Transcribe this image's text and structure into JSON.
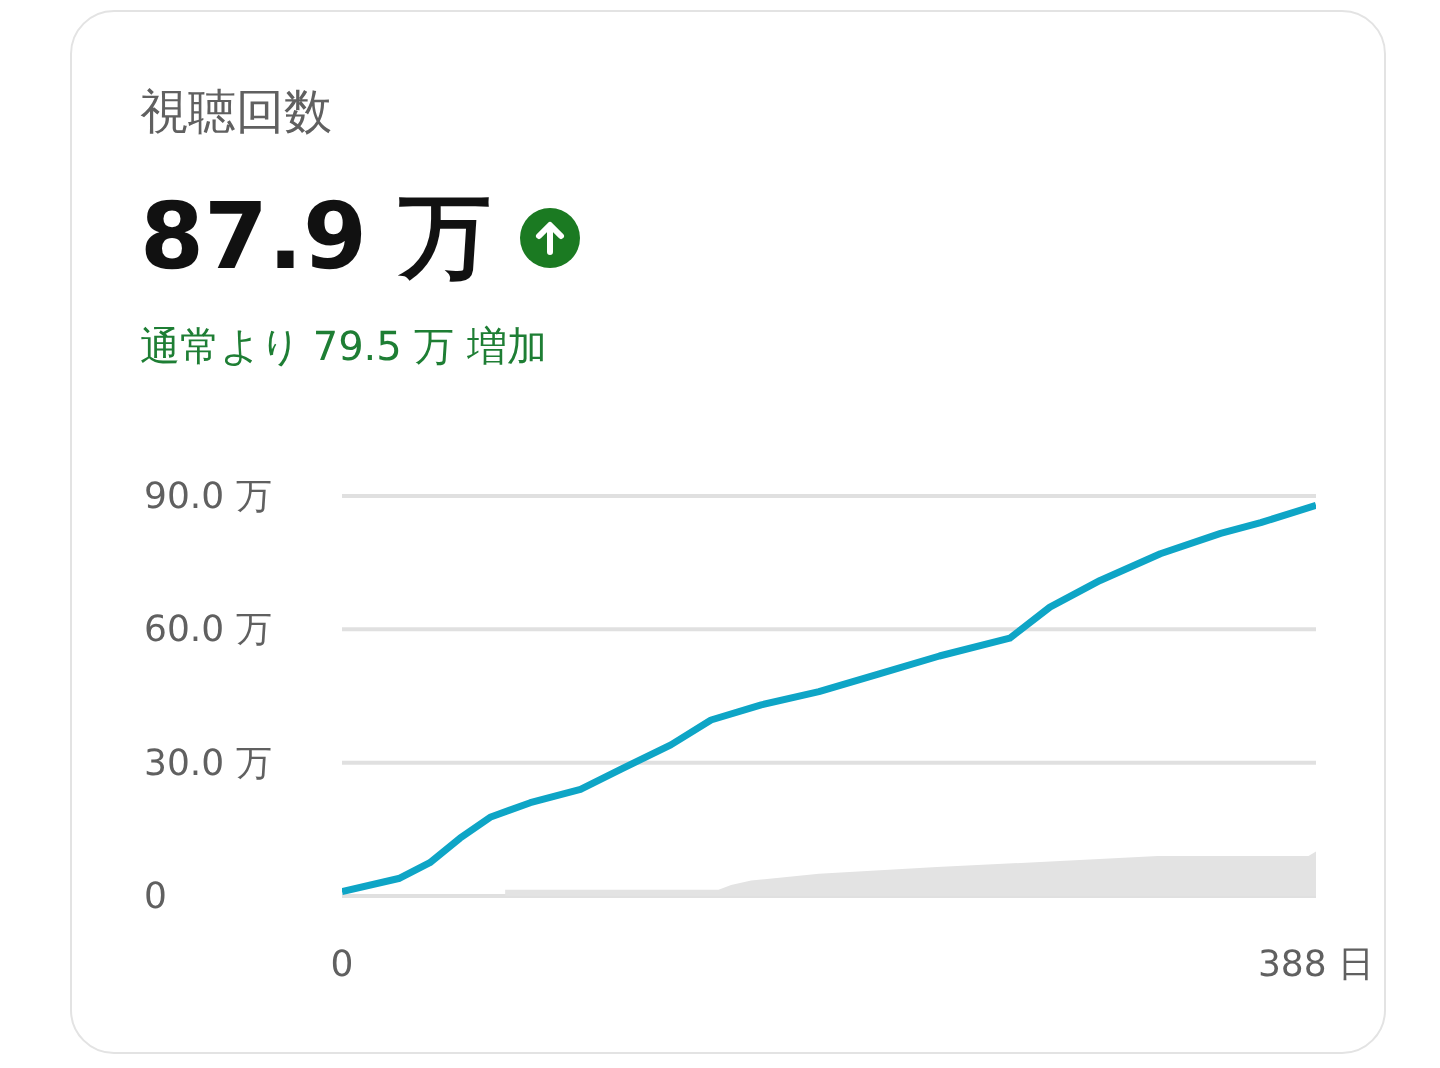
{
  "chart_data": {
    "type": "line",
    "title": "視聴回数",
    "subtitle": "87.9 万",
    "annotations": [
      "通常より 79.5 万 増加"
    ],
    "xlim": [
      0,
      388
    ],
    "xticks": [
      0,
      {
        "value": 388,
        "label": "388 日"
      }
    ],
    "ylim": [
      0,
      90
    ],
    "yticks": [
      0,
      {
        "value": 30,
        "label": "30.0 万"
      },
      {
        "value": 60,
        "label": "60.0 万"
      },
      {
        "value": 90,
        "label": "90.0 万"
      }
    ],
    "grid": "y",
    "legend": false,
    "marker": "none",
    "line_style": "solid",
    "series": [
      {
        "type": "area",
        "color": "#e3e3e3",
        "x": [
          65,
          150,
          155,
          163,
          190,
          237,
          290,
          325,
          385,
          388
        ],
        "values": [
          1.4,
          1.4,
          2.5,
          3.5,
          5,
          6.5,
          8,
          9,
          9,
          10
        ]
      },
      {
        "color": "#0ea5c6",
        "x": [
          0,
          23,
          35,
          47,
          59,
          75,
          95,
          111,
          131,
          147,
          167,
          190,
          214,
          238,
          266,
          282,
          302,
          326,
          350,
          366,
          388
        ],
        "values": [
          1,
          4,
          7.5,
          13,
          17.7,
          21,
          24,
          28.5,
          34,
          39.6,
          43,
          46,
          50,
          54,
          58,
          65,
          71,
          77,
          81.6,
          84,
          87.9
        ]
      }
    ]
  }
}
